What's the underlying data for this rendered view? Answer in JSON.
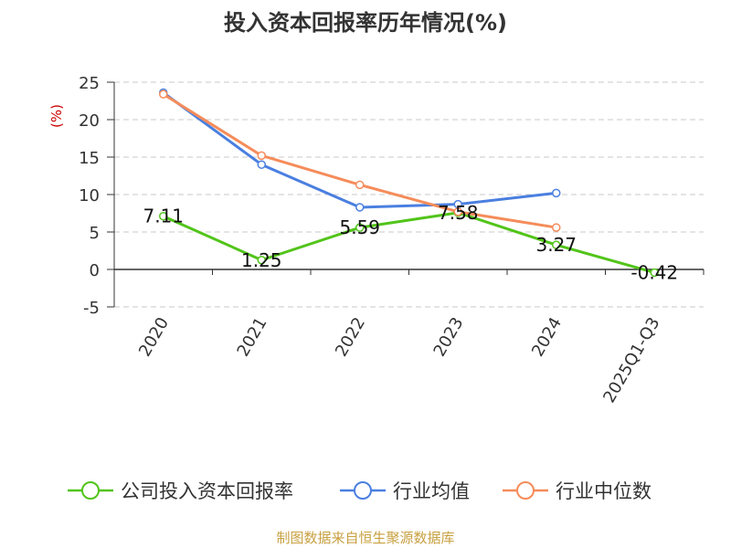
{
  "chart_data": {
    "type": "line",
    "title": "投入资本回报率历年情况(%)",
    "ylabel": "(%)",
    "xlabel": "",
    "categories": [
      "2020",
      "2021",
      "2022",
      "2023",
      "2024",
      "2025Q1-Q3"
    ],
    "ylim": [
      -5,
      25
    ],
    "yticks": [
      -5,
      0,
      5,
      10,
      15,
      20,
      25
    ],
    "grid": true,
    "legend_position": "bottom",
    "series": [
      {
        "name": "公司投入资本回报率",
        "color": "#52c41a",
        "values": [
          7.11,
          1.25,
          5.59,
          7.58,
          3.27,
          -0.42
        ],
        "labels": [
          "7.11",
          "1.25",
          "5.59",
          "7.58",
          "3.27",
          "-0.42"
        ]
      },
      {
        "name": "行业均值",
        "color": "#4a7fe0",
        "values": [
          23.6,
          14.0,
          8.3,
          8.7,
          10.2,
          null
        ]
      },
      {
        "name": "行业中位数",
        "color": "#f58c5a",
        "values": [
          23.4,
          15.2,
          11.3,
          7.7,
          5.6,
          null
        ]
      }
    ]
  },
  "source": "制图数据来自恒生聚源数据库"
}
